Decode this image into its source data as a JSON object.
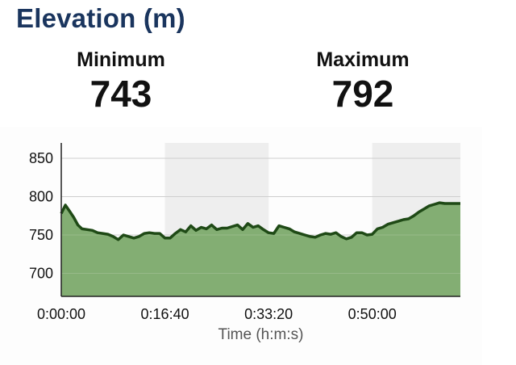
{
  "header": {
    "title": "Elevation (m)"
  },
  "stats": {
    "min_label": "Minimum",
    "min_value": "743",
    "max_label": "Maximum",
    "max_value": "792"
  },
  "colors": {
    "title": "#1a355e",
    "fill": "#7caa6c",
    "line": "#1f4a16"
  },
  "chart_data": {
    "type": "area",
    "xlabel": "Time (h:m:s)",
    "ylabel": "",
    "xlim": [
      0,
      3850
    ],
    "ylim": [
      670,
      870
    ],
    "yticks": [
      700,
      750,
      800,
      850
    ],
    "xtick_values": [
      0,
      1000,
      2000,
      3000
    ],
    "xtick_labels": [
      "0:00:00",
      "0:16:40",
      "0:33:20",
      "0:50:00"
    ],
    "grid": true,
    "shaded_bands": [
      [
        1000,
        2000
      ],
      [
        3000,
        3850
      ]
    ],
    "series": [
      {
        "x": [
          0,
          40,
          80,
          120,
          160,
          200,
          250,
          300,
          350,
          400,
          450,
          500,
          550,
          600,
          650,
          700,
          750,
          800,
          850,
          900,
          950,
          1000,
          1050,
          1100,
          1150,
          1200,
          1250,
          1300,
          1350,
          1400,
          1450,
          1500,
          1550,
          1600,
          1650,
          1700,
          1750,
          1800,
          1850,
          1900,
          1950,
          2000,
          2050,
          2100,
          2150,
          2200,
          2250,
          2300,
          2350,
          2400,
          2450,
          2500,
          2550,
          2600,
          2650,
          2700,
          2750,
          2800,
          2850,
          2900,
          2950,
          3000,
          3050,
          3100,
          3150,
          3200,
          3250,
          3300,
          3350,
          3400,
          3450,
          3500,
          3550,
          3600,
          3650,
          3700,
          3750,
          3800,
          3850
        ],
        "values": [
          778,
          789,
          781,
          773,
          763,
          758,
          757,
          756,
          753,
          752,
          751,
          748,
          744,
          750,
          748,
          746,
          748,
          752,
          753,
          752,
          752,
          746,
          746,
          752,
          757,
          754,
          762,
          756,
          760,
          758,
          763,
          757,
          759,
          759,
          761,
          763,
          757,
          765,
          760,
          762,
          757,
          753,
          752,
          762,
          760,
          758,
          754,
          752,
          750,
          748,
          747,
          750,
          752,
          751,
          753,
          748,
          745,
          747,
          753,
          753,
          750,
          751,
          758,
          760,
          764,
          766,
          768,
          770,
          771,
          775,
          780,
          784,
          788,
          790,
          792,
          791,
          791,
          791,
          791
        ]
      }
    ]
  }
}
